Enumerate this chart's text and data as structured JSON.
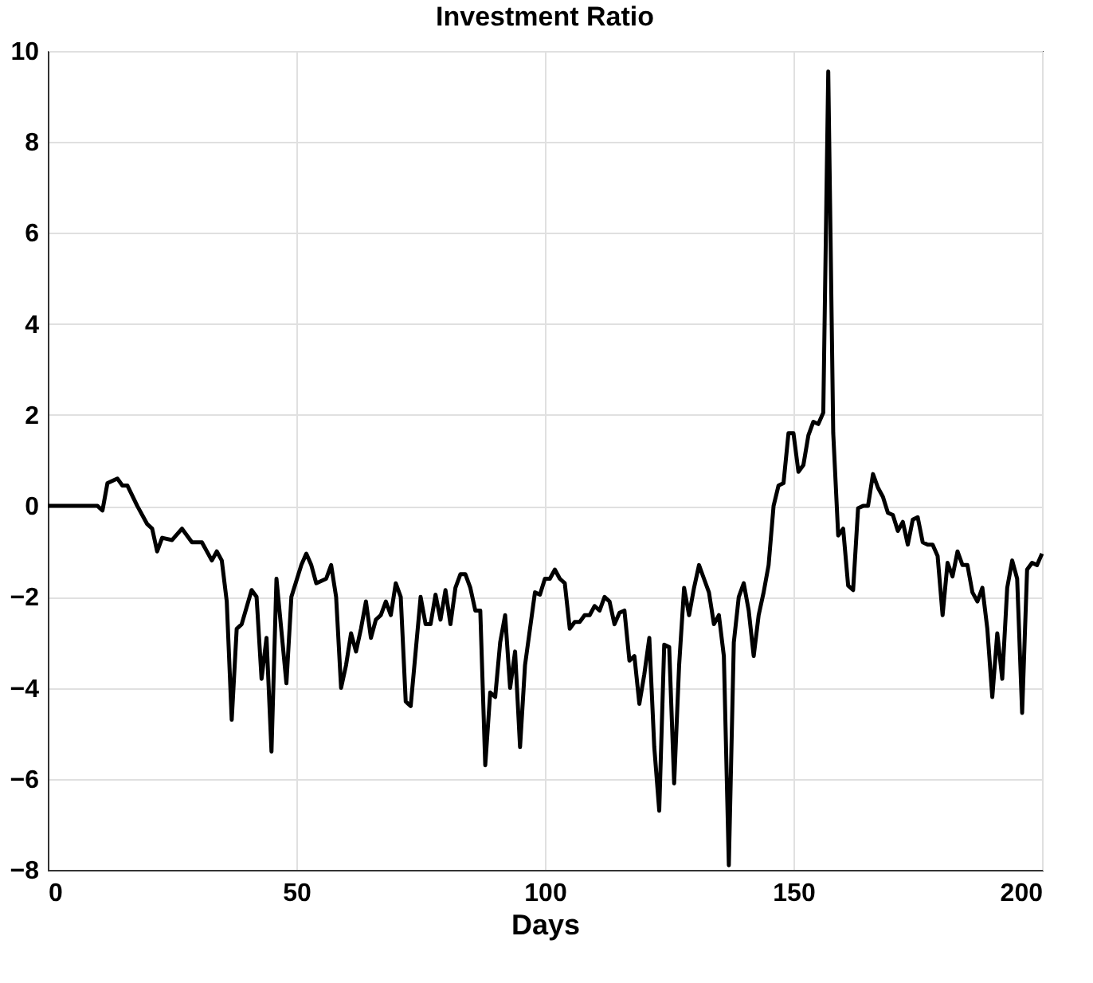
{
  "chart_data": {
    "type": "line",
    "title": "Investment Ratio",
    "xlabel": "Days",
    "x": [
      0,
      10,
      11,
      12,
      14,
      15,
      16,
      18,
      20,
      21,
      22,
      23,
      25,
      27,
      29,
      31,
      33,
      34,
      35,
      36,
      37,
      38,
      39,
      41,
      42,
      43,
      44,
      45,
      46,
      48,
      49,
      51,
      52,
      53,
      54,
      56,
      57,
      58,
      59,
      60,
      61,
      62,
      63,
      64,
      65,
      66,
      67,
      68,
      69,
      70,
      71,
      72,
      73,
      75,
      76,
      77,
      78,
      79,
      80,
      81,
      82,
      83,
      84,
      85,
      86,
      87,
      88,
      89,
      90,
      91,
      92,
      93,
      94,
      95,
      96,
      98,
      99,
      100,
      101,
      102,
      103,
      104,
      105,
      106,
      107,
      108,
      109,
      110,
      111,
      112,
      113,
      114,
      115,
      116,
      117,
      118,
      119,
      120,
      121,
      122,
      123,
      124,
      125,
      126,
      127,
      128,
      129,
      130,
      131,
      132,
      133,
      134,
      135,
      136,
      137,
      138,
      139,
      140,
      141,
      142,
      143,
      144,
      145,
      146,
      147,
      148,
      149,
      150,
      151,
      152,
      153,
      154,
      155,
      156,
      157,
      158,
      159,
      160,
      161,
      162,
      163,
      164,
      165,
      166,
      167,
      168,
      169,
      170,
      171,
      172,
      173,
      174,
      175,
      176,
      177,
      178,
      179,
      180,
      181,
      182,
      183,
      184,
      185,
      186,
      187,
      188,
      189,
      190,
      191,
      192,
      193,
      194,
      195,
      196,
      197,
      198,
      199,
      200
    ],
    "series": [
      {
        "color": "#000000",
        "values": [
          0,
          0,
          -0.1,
          0.5,
          0.6,
          0.45,
          0.45,
          0,
          -0.4,
          -0.5,
          -1.0,
          -0.7,
          -0.75,
          -0.5,
          -0.8,
          -0.8,
          -1.2,
          -1.0,
          -1.2,
          -2.1,
          -4.7,
          -2.7,
          -2.6,
          -1.85,
          -2.0,
          -3.8,
          -2.9,
          -5.4,
          -1.6,
          -3.9,
          -2.0,
          -1.3,
          -1.05,
          -1.3,
          -1.7,
          -1.6,
          -1.3,
          -2.0,
          -4.0,
          -3.5,
          -2.8,
          -3.2,
          -2.7,
          -2.1,
          -2.9,
          -2.5,
          -2.4,
          -2.1,
          -2.4,
          -1.7,
          -2.0,
          -4.3,
          -4.4,
          -2.0,
          -2.6,
          -2.6,
          -1.95,
          -2.5,
          -1.85,
          -2.6,
          -1.8,
          -1.5,
          -1.5,
          -1.8,
          -2.3,
          -2.3,
          -5.7,
          -4.1,
          -4.2,
          -3.0,
          -2.4,
          -4.0,
          -3.2,
          -5.3,
          -3.5,
          -1.9,
          -1.95,
          -1.6,
          -1.6,
          -1.4,
          -1.6,
          -1.7,
          -2.7,
          -2.55,
          -2.55,
          -2.4,
          -2.4,
          -2.2,
          -2.3,
          -2.0,
          -2.1,
          -2.6,
          -2.35,
          -2.3,
          -3.4,
          -3.3,
          -4.35,
          -3.7,
          -2.9,
          -5.3,
          -6.7,
          -3.05,
          -3.1,
          -6.1,
          -3.5,
          -1.8,
          -2.4,
          -1.8,
          -1.3,
          -1.6,
          -1.9,
          -2.6,
          -2.4,
          -3.3,
          -7.9,
          -3.0,
          -2.0,
          -1.7,
          -2.3,
          -3.3,
          -2.4,
          -1.9,
          -1.3,
          0.0,
          0.45,
          0.5,
          1.6,
          1.6,
          0.75,
          0.9,
          1.55,
          1.85,
          1.8,
          2.05,
          9.55,
          1.6,
          -0.65,
          -0.5,
          -1.75,
          -1.85,
          -0.05,
          0.0,
          0.0,
          0.7,
          0.4,
          0.2,
          -0.15,
          -0.2,
          -0.55,
          -0.35,
          -0.85,
          -0.3,
          -0.25,
          -0.8,
          -0.85,
          -0.85,
          -1.1,
          -2.4,
          -1.25,
          -1.55,
          -1.0,
          -1.3,
          -1.3,
          -1.9,
          -2.1,
          -1.8,
          -2.7,
          -4.2,
          -2.8,
          -3.8,
          -1.8,
          -1.2,
          -1.6,
          -4.55,
          -1.4,
          -1.25,
          -1.3,
          -1.05
        ]
      }
    ],
    "xlim": [
      0,
      200
    ],
    "xticks": [
      0,
      50,
      100,
      150,
      200
    ],
    "ylim": [
      -8,
      10
    ],
    "yticks": [
      -8,
      -6,
      -4,
      -2,
      0,
      2,
      4,
      6,
      8,
      10
    ],
    "grid": true,
    "legend": false,
    "marker": "none",
    "line_style": "solid"
  }
}
